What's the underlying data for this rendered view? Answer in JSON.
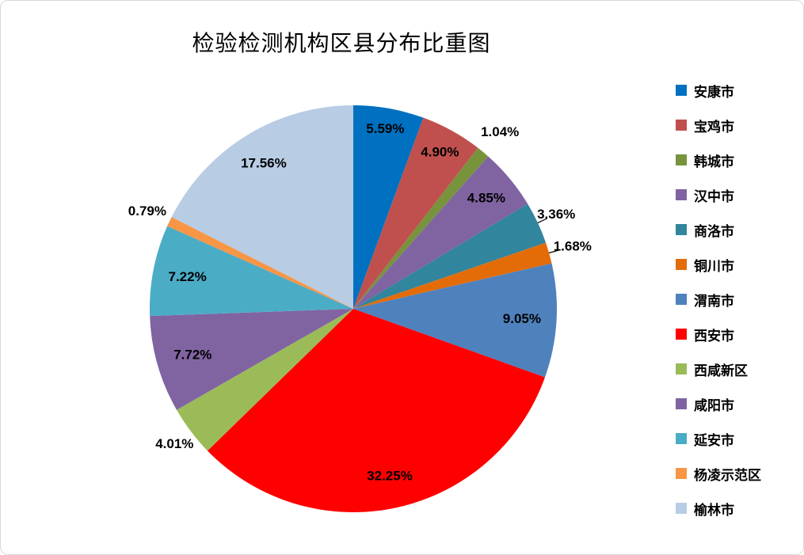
{
  "chart_data": {
    "type": "pie",
    "title": "检验检测机构区县分布比重图",
    "legend_position": "right",
    "start_angle_deg": 0,
    "direction": "clockwise",
    "label_format": "percent",
    "slices": [
      {
        "name": "安康市",
        "value": 5.59,
        "display": "5.59%",
        "color": "#0070C0",
        "label_mode": "in",
        "label_r": 0.9,
        "leader": false
      },
      {
        "name": "宝鸡市",
        "value": 4.9,
        "display": "4.90%",
        "color": "#C0504D",
        "label_mode": "in",
        "label_r": 0.88,
        "leader": false
      },
      {
        "name": "韩城市",
        "value": 1.04,
        "display": "1.04%",
        "color": "#77933C",
        "label_mode": "out",
        "label_r": 1.13,
        "leader": false
      },
      {
        "name": "汉中市",
        "value": 4.85,
        "display": "4.85%",
        "color": "#8064A2",
        "label_mode": "in",
        "label_r": 0.85,
        "leader": false
      },
      {
        "name": "商洛市",
        "value": 3.36,
        "display": "3.36%",
        "color": "#31859C",
        "label_mode": "out",
        "label_r": 1.1,
        "leader": true
      },
      {
        "name": "铜川市",
        "value": 1.68,
        "display": "1.68%",
        "color": "#E36C09",
        "label_mode": "out",
        "label_r": 1.12,
        "leader": true
      },
      {
        "name": "渭南市",
        "value": 9.05,
        "display": "9.05%",
        "color": "#4F81BD",
        "label_mode": "in",
        "label_r": 0.83,
        "leader": false
      },
      {
        "name": "西安市",
        "value": 32.25,
        "display": "32.25%",
        "color": "#FF0000",
        "label_mode": "in",
        "label_r": 0.84,
        "leader": false
      },
      {
        "name": "西咸新区",
        "value": 4.01,
        "display": "4.01%",
        "color": "#9BBB59",
        "label_mode": "out",
        "label_r": 1.1,
        "leader": false
      },
      {
        "name": "咸阳市",
        "value": 7.72,
        "display": "7.72%",
        "color": "#8064A2",
        "label_mode": "in",
        "label_r": 0.82,
        "leader": false
      },
      {
        "name": "延安市",
        "value": 7.22,
        "display": "7.22%",
        "color": "#4BACC6",
        "label_mode": "in",
        "label_r": 0.83,
        "leader": false
      },
      {
        "name": "杨凌示范区",
        "value": 0.79,
        "display": "0.79%",
        "color": "#F79646",
        "label_mode": "out",
        "label_r": 1.12,
        "leader": false
      },
      {
        "name": "榆林市",
        "value": 17.56,
        "display": "17.56%",
        "color": "#B8CCE4",
        "label_mode": "in",
        "label_r": 0.84,
        "leader": false
      }
    ]
  }
}
